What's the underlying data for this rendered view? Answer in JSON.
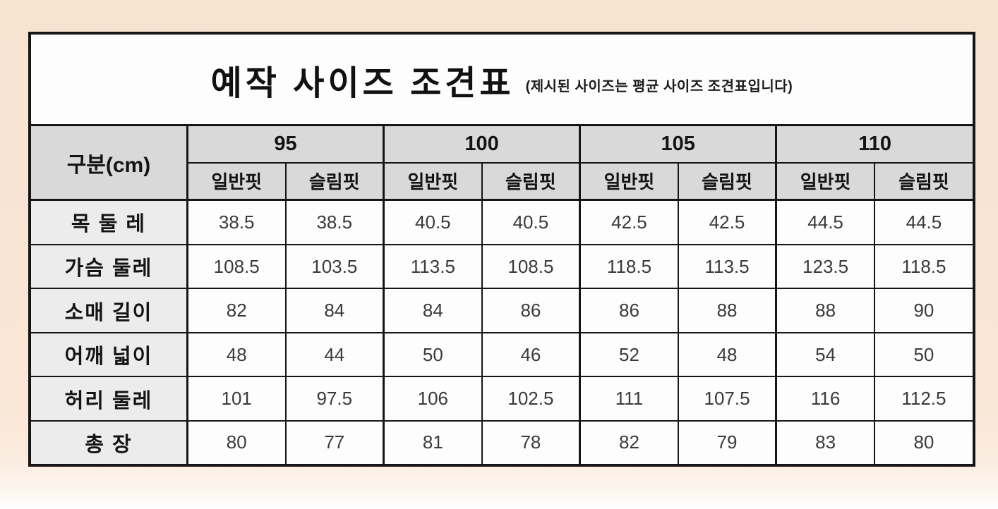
{
  "colors": {
    "page_bg": "#f8e3d1",
    "card_bg": "#fdfdfd",
    "header_bg": "#d9d9d9",
    "row_label_bg": "#ececec",
    "border": "#161616",
    "value_text": "#3a3a3a"
  },
  "title": {
    "main": "예작 사이즈 조견표",
    "note": "(제시된 사이즈는 평균 사이즈 조견표입니다)"
  },
  "table": {
    "corner_label": "구분(cm)",
    "size_groups": [
      "95",
      "100",
      "105",
      "110"
    ],
    "fit_labels": [
      "일반핏",
      "슬림핏"
    ],
    "rows": [
      {
        "label": "목 둘 레",
        "values": [
          "38.5",
          "38.5",
          "40.5",
          "40.5",
          "42.5",
          "42.5",
          "44.5",
          "44.5"
        ]
      },
      {
        "label": "가슴 둘레",
        "values": [
          "108.5",
          "103.5",
          "113.5",
          "108.5",
          "118.5",
          "113.5",
          "123.5",
          "118.5"
        ]
      },
      {
        "label": "소매 길이",
        "values": [
          "82",
          "84",
          "84",
          "86",
          "86",
          "88",
          "88",
          "90"
        ]
      },
      {
        "label": "어깨 넓이",
        "values": [
          "48",
          "44",
          "50",
          "46",
          "52",
          "48",
          "54",
          "50"
        ]
      },
      {
        "label": "허리 둘레",
        "values": [
          "101",
          "97.5",
          "106",
          "102.5",
          "111",
          "107.5",
          "116",
          "112.5"
        ]
      },
      {
        "label": "총 장",
        "values": [
          "80",
          "77",
          "81",
          "78",
          "82",
          "79",
          "83",
          "80"
        ]
      }
    ]
  },
  "chart_data": {
    "type": "table",
    "title": "예작 사이즈 조견표",
    "subtitle": "(제시된 사이즈는 평균 사이즈 조견표입니다)",
    "columns": [
      "구분(cm)",
      "95 일반핏",
      "95 슬림핏",
      "100 일반핏",
      "100 슬림핏",
      "105 일반핏",
      "105 슬림핏",
      "110 일반핏",
      "110 슬림핏"
    ],
    "rows": [
      [
        "목 둘 레",
        38.5,
        38.5,
        40.5,
        40.5,
        42.5,
        42.5,
        44.5,
        44.5
      ],
      [
        "가슴 둘레",
        108.5,
        103.5,
        113.5,
        108.5,
        118.5,
        113.5,
        123.5,
        118.5
      ],
      [
        "소매 길이",
        82,
        84,
        84,
        86,
        86,
        88,
        88,
        90
      ],
      [
        "어깨 넓이",
        48,
        44,
        50,
        46,
        52,
        48,
        54,
        50
      ],
      [
        "허리 둘레",
        101,
        97.5,
        106,
        102.5,
        111,
        107.5,
        116,
        112.5
      ],
      [
        "총 장",
        80,
        77,
        81,
        78,
        82,
        79,
        83,
        80
      ]
    ]
  }
}
